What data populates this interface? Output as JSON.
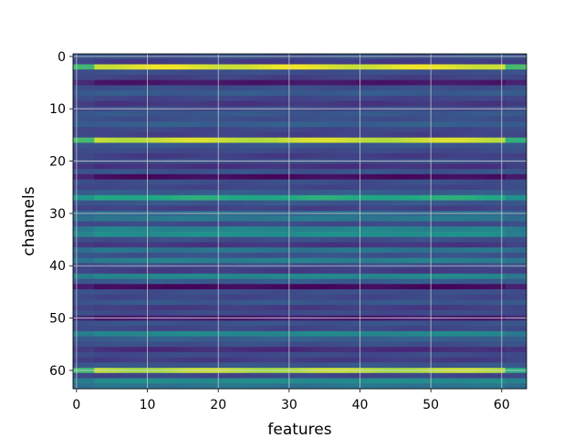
{
  "chart_data": {
    "type": "heatmap",
    "title": "",
    "xlabel": "features",
    "ylabel": "channels",
    "rows": 64,
    "cols": 64,
    "xlim": [
      -0.5,
      63.5
    ],
    "ylim": [
      63.5,
      -0.5
    ],
    "xticks": [
      0,
      10,
      20,
      30,
      40,
      50,
      60
    ],
    "yticks": [
      0,
      10,
      20,
      30,
      40,
      50,
      60
    ],
    "grid": true,
    "colormap": "viridis",
    "value_range": [
      0,
      1
    ],
    "row_values": [
      0.32,
      0.22,
      0.97,
      0.3,
      0.24,
      0.08,
      0.3,
      0.36,
      0.26,
      0.2,
      0.28,
      0.34,
      0.3,
      0.38,
      0.26,
      0.24,
      0.95,
      0.34,
      0.28,
      0.22,
      0.3,
      0.18,
      0.32,
      0.04,
      0.3,
      0.26,
      0.36,
      0.75,
      0.34,
      0.24,
      0.44,
      0.5,
      0.28,
      0.56,
      0.62,
      0.3,
      0.2,
      0.48,
      0.32,
      0.54,
      0.28,
      0.22,
      0.58,
      0.36,
      0.03,
      0.3,
      0.26,
      0.34,
      0.22,
      0.28,
      0.1,
      0.32,
      0.26,
      0.58,
      0.38,
      0.3,
      0.16,
      0.28,
      0.22,
      0.34,
      0.93,
      0.26,
      0.6,
      0.48
    ],
    "edge_columns_brighter": [
      0,
      1,
      2,
      61,
      62,
      63
    ]
  }
}
